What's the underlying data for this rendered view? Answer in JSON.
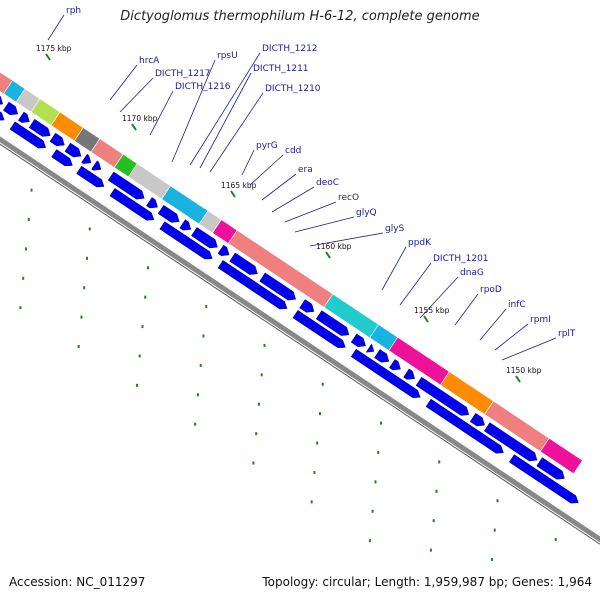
{
  "title": "Dictyoglomus thermophilum H-6-12, complete genome",
  "accession": "Accession: NC_011297",
  "topology": "Topology: circular; Length: 1,959,987 bp; Genes: 1,964",
  "colors": {
    "gene_label": "#1a1aa0",
    "tick": "#2a7a2a",
    "arrow": "#0000ee",
    "backbone": "#888888"
  },
  "kbp_labels": [
    "1175 kbp",
    "1170 kbp",
    "1165 kbp",
    "1160 kbp",
    "1155 kbp",
    "1150 kbp"
  ],
  "gene_labels": [
    "rph",
    "hrcA",
    "DICTH_1217",
    "rpsU",
    "DICTH_1216",
    "DICTH_1212",
    "DICTH_1211",
    "DICTH_1210",
    "pyrG",
    "cdd",
    "era",
    "deoC",
    "recO",
    "glyQ",
    "glyS",
    "ppdK",
    "DICTH_1201",
    "dnaG",
    "rpoD",
    "infC",
    "rpmI",
    "rplT"
  ],
  "cog_blocks": [
    {
      "color": "#00d8d8"
    },
    {
      "color": "#f08080"
    },
    {
      "color": "#19b3e0"
    },
    {
      "color": "#c8c8c8"
    },
    {
      "color": "#b3e050"
    },
    {
      "color": "#ff8c00"
    },
    {
      "color": "#777777"
    },
    {
      "color": "#f08080"
    },
    {
      "color": "#22c022"
    },
    {
      "color": "#c8c8c8"
    },
    {
      "color": "#19b3e0"
    },
    {
      "color": "#c8c8c8"
    },
    {
      "color": "#ee1199"
    },
    {
      "color": "#f08080"
    },
    {
      "color": "#22cccc"
    },
    {
      "color": "#19b3e0"
    },
    {
      "color": "#ee1199"
    },
    {
      "color": "#ff8c00"
    },
    {
      "color": "#f08080"
    },
    {
      "color": "#ee1199"
    }
  ]
}
